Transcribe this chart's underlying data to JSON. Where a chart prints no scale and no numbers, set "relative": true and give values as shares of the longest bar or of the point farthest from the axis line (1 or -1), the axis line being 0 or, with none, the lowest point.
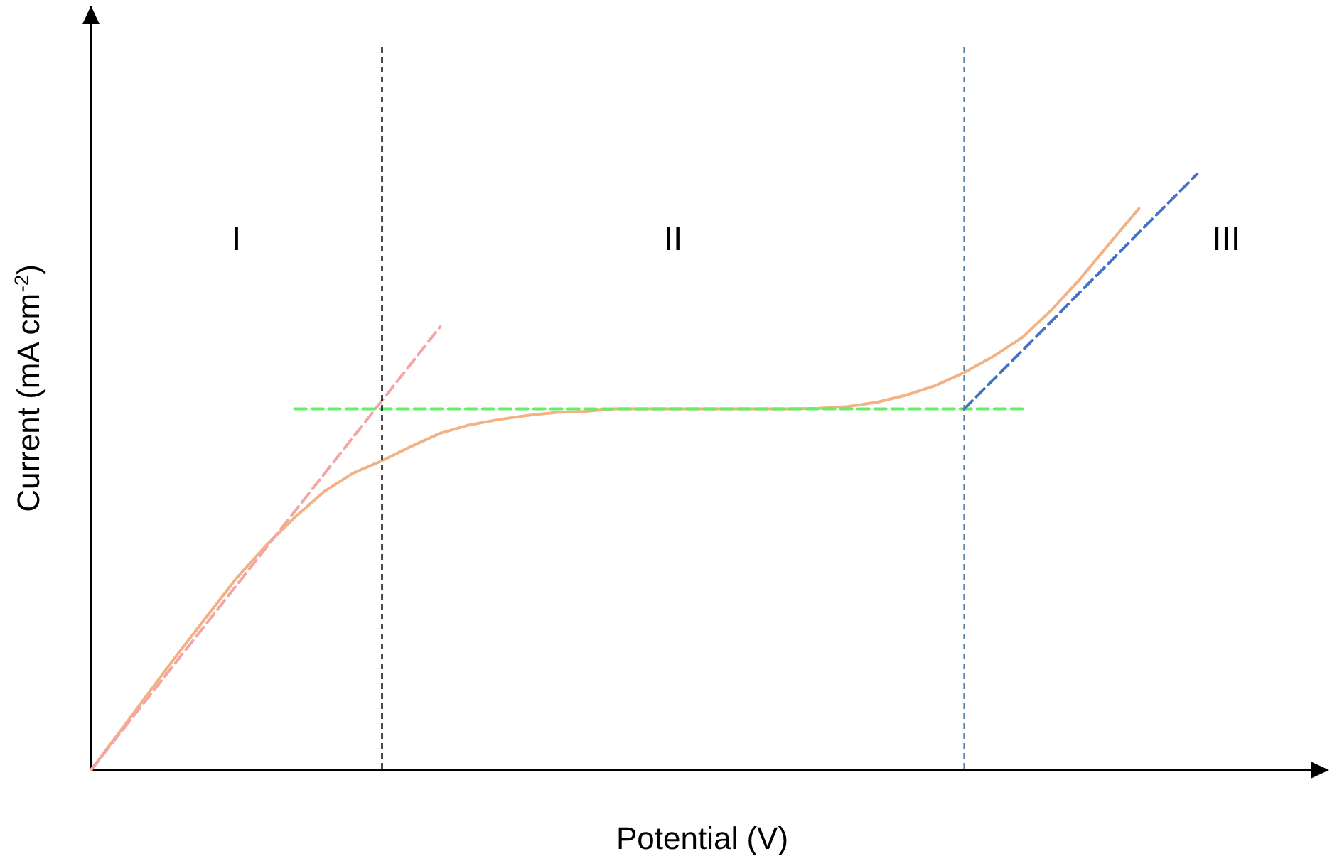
{
  "chart_data": {
    "type": "line",
    "relative": true,
    "xlabel": "Potential (V)",
    "ylabel": "Current (mA cm$^{-2}$)",
    "categories": [
      null,
      null,
      null,
      null,
      null,
      null,
      null,
      null,
      null,
      null,
      null,
      null,
      null,
      null,
      null,
      null,
      null,
      null,
      null,
      null,
      null,
      null,
      null,
      null,
      null,
      null,
      null,
      null,
      null,
      null,
      null,
      null,
      null,
      null,
      null,
      null,
      null,
      null,
      null,
      null,
      null,
      null,
      null
    ],
    "series": [
      {
        "color": "#f4b183",
        "values": [
          0,
          0.065,
          0.131,
          0.196,
          0.259,
          0.322,
          0.376,
          0.424,
          0.467,
          0.498,
          0.519,
          0.543,
          0.565,
          0.579,
          0.588,
          0.595,
          0.6,
          0.602,
          0.606,
          0.606,
          0.606,
          0.606,
          0.606,
          0.606,
          0.606,
          0.607,
          0.61,
          0.617,
          0.629,
          0.645,
          0.667,
          0.694,
          0.726,
          0.772,
          0.825,
          0.884,
          0.942,
          null,
          null,
          null,
          null,
          null,
          null
        ]
      },
      {
        "color": "#f4a6a6",
        "line_style": "dashed",
        "values": [
          0,
          0.062,
          0.124,
          0.186,
          0.248,
          0.31,
          0.372,
          0.434,
          0.496,
          0.558,
          0.62,
          0.682,
          0.744,
          null,
          null,
          null,
          null,
          null,
          null,
          null,
          null,
          null,
          null,
          null,
          null,
          null,
          null,
          null,
          null,
          null,
          null,
          null,
          null,
          null,
          null,
          null,
          null,
          null,
          null,
          null,
          null,
          null,
          null
        ]
      },
      {
        "color": "#66ee66",
        "line_style": "dashed",
        "values": [
          null,
          null,
          null,
          null,
          null,
          null,
          null,
          0.606,
          0.606,
          0.606,
          0.606,
          0.606,
          0.606,
          0.606,
          0.606,
          0.606,
          0.606,
          0.606,
          0.606,
          0.606,
          0.606,
          0.606,
          0.606,
          0.606,
          0.606,
          0.606,
          0.606,
          0.606,
          0.606,
          0.606,
          0.606,
          0.606,
          0.606,
          null,
          null,
          null,
          null,
          null,
          null,
          null,
          null,
          null,
          null
        ]
      },
      {
        "color": "#4472c4",
        "line_style": "dashed",
        "values": [
          null,
          null,
          null,
          null,
          null,
          null,
          null,
          null,
          null,
          null,
          null,
          null,
          null,
          null,
          null,
          null,
          null,
          null,
          null,
          null,
          null,
          null,
          null,
          null,
          null,
          null,
          null,
          null,
          null,
          null,
          0.606,
          0.655,
          0.704,
          0.753,
          0.803,
          0.852,
          0.902,
          0.951,
          1,
          null,
          null,
          null,
          null
        ]
      }
    ],
    "annotations": [
      "I",
      "II",
      "III"
    ],
    "grid": false,
    "legend": false,
    "marker": "none"
  }
}
